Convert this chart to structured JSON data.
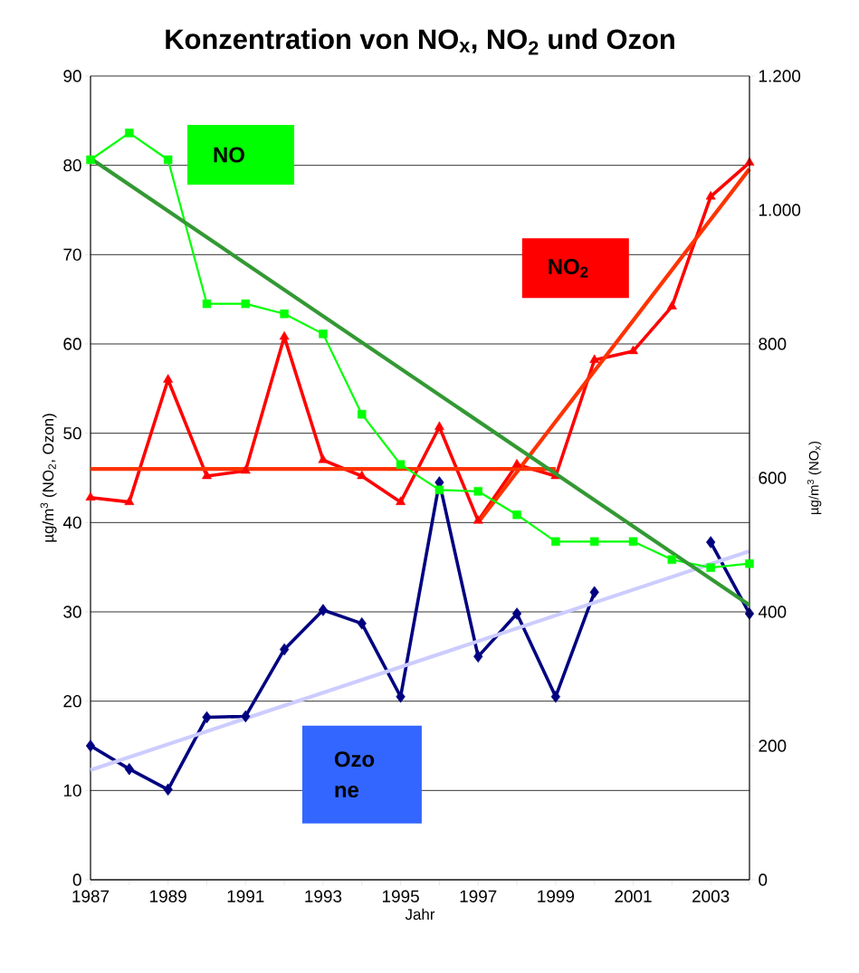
{
  "chart_data": {
    "type": "line",
    "title": "Konzentration von NO$_{x}$, NO$_{2}$ und Ozon",
    "xlabel": "Jahr",
    "ylabel": "µg/m$^{3}$ (NO$_{2}$, Ozon)",
    "y2label": "µg/m$^{3}$ (NO$_{x}$)",
    "x": [
      1987,
      1988,
      1989,
      1990,
      1991,
      1992,
      1993,
      1994,
      1995,
      1996,
      1997,
      1998,
      1999,
      2000,
      2001,
      2002,
      2003,
      2004
    ],
    "xlim": [
      1987,
      2004
    ],
    "xticks": [
      1987,
      {
        "value": 1988,
        "label": null
      },
      1989,
      {
        "value": 1990,
        "label": null
      },
      1991,
      {
        "value": 1992,
        "label": null
      },
      1993,
      {
        "value": 1994,
        "label": null
      },
      1995,
      {
        "value": 1996,
        "label": null
      },
      1997,
      {
        "value": 1998,
        "label": null
      },
      1999,
      {
        "value": 2000,
        "label": null
      },
      2001,
      {
        "value": 2002,
        "label": null
      },
      2003,
      {
        "value": 2004,
        "label": null
      }
    ],
    "ylim": [
      0,
      90
    ],
    "yticks": [
      0,
      10,
      20,
      30,
      40,
      50,
      60,
      70,
      80,
      90
    ],
    "y2lim": [
      0,
      1200
    ],
    "y2ticks": [
      0,
      200,
      400,
      600,
      800,
      {
        "value": 1000,
        "label": "1.000"
      },
      {
        "value": 1200,
        "label": "1.200"
      }
    ],
    "grid": "y",
    "series": [
      {
        "name": "NO",
        "color": "#00ff00",
        "axis": "y2",
        "marker": "square",
        "values": [
          1075,
          1115,
          1075,
          860,
          860,
          845,
          815,
          695,
          620,
          582,
          580,
          545,
          505,
          505,
          505,
          478,
          466,
          472
        ]
      },
      {
        "name": "NO$_{2}$",
        "color": "#ff0000",
        "marker": "triangle",
        "values": [
          42.8,
          42.3,
          56,
          45.2,
          45.8,
          60.8,
          47,
          45.2,
          42.3,
          50.7,
          40.2,
          46.5,
          45.2,
          58.2,
          59.2,
          64.2,
          76.5,
          80.3
        ]
      },
      {
        "name": "Ozo ne",
        "color": "#000080",
        "marker": "diamond",
        "values": [
          15,
          12.4,
          10.1,
          18.2,
          18.3,
          25.8,
          30.2,
          28.7,
          20.5,
          44.5,
          25,
          29.8,
          20.5,
          32.2,
          null,
          null,
          37.8,
          29.8
        ]
      },
      {
        "type": "line",
        "color": "#339933",
        "axis": "y2",
        "marker": "none",
        "x": [
          1987,
          2004
        ],
        "values": [
          1077,
          410
        ]
      },
      {
        "type": "line",
        "color": "#ff3300",
        "marker": "none",
        "x": [
          1987,
          1999
        ],
        "values": [
          46,
          46
        ]
      },
      {
        "type": "line",
        "color": "#ff3300",
        "marker": "none",
        "x": [
          1997,
          2004
        ],
        "values": [
          40,
          79.6
        ]
      },
      {
        "type": "line",
        "color": "#ccccff",
        "marker": "none",
        "x": [
          1987,
          2004
        ],
        "values": [
          12.3,
          36.8
        ]
      }
    ]
  }
}
